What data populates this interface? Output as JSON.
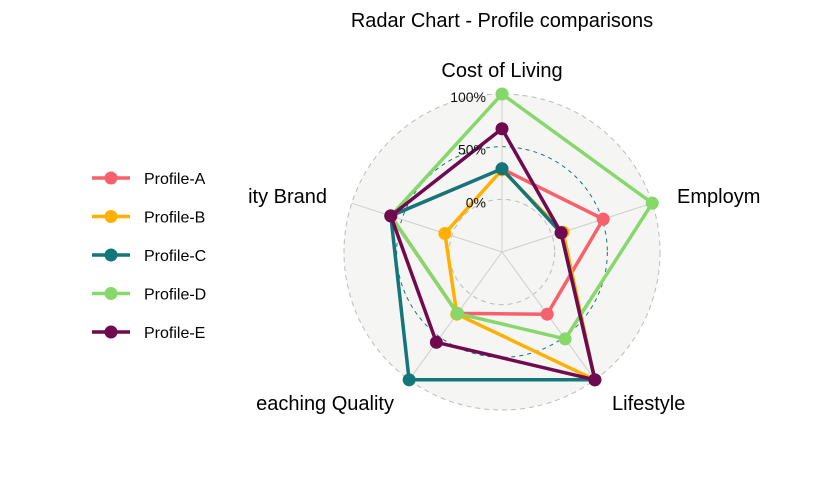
{
  "chart_data": {
    "type": "radar",
    "title": "Radar Chart - Profile comparisons",
    "axes": [
      "Cost of Living",
      "Employm",
      "Lifestyle",
      "eaching Quality",
      "ity Brand"
    ],
    "radial_ticks": [
      "0%",
      "50%",
      "100%"
    ],
    "ylim": [
      -0.5,
      1.0
    ],
    "legend_position": "left",
    "grid": true,
    "series": [
      {
        "name": "Profile-A",
        "color": "#F8616B",
        "values": [
          0.29,
          0.51,
          0.23,
          0.22,
          0.61
        ]
      },
      {
        "name": "Profile-B",
        "color": "#FFB000",
        "values": [
          0.28,
          0.11,
          1.0,
          0.23,
          0.07
        ]
      },
      {
        "name": "Profile-C",
        "color": "#13767A",
        "values": [
          0.29,
          0.09,
          1.0,
          1.0,
          0.61
        ]
      },
      {
        "name": "Profile-D",
        "color": "#86D86B",
        "values": [
          1.0,
          1.0,
          0.52,
          0.22,
          0.61
        ]
      },
      {
        "name": "Profile-E",
        "color": "#70094F",
        "values": [
          0.67,
          0.09,
          1.0,
          0.56,
          0.61
        ]
      }
    ]
  }
}
